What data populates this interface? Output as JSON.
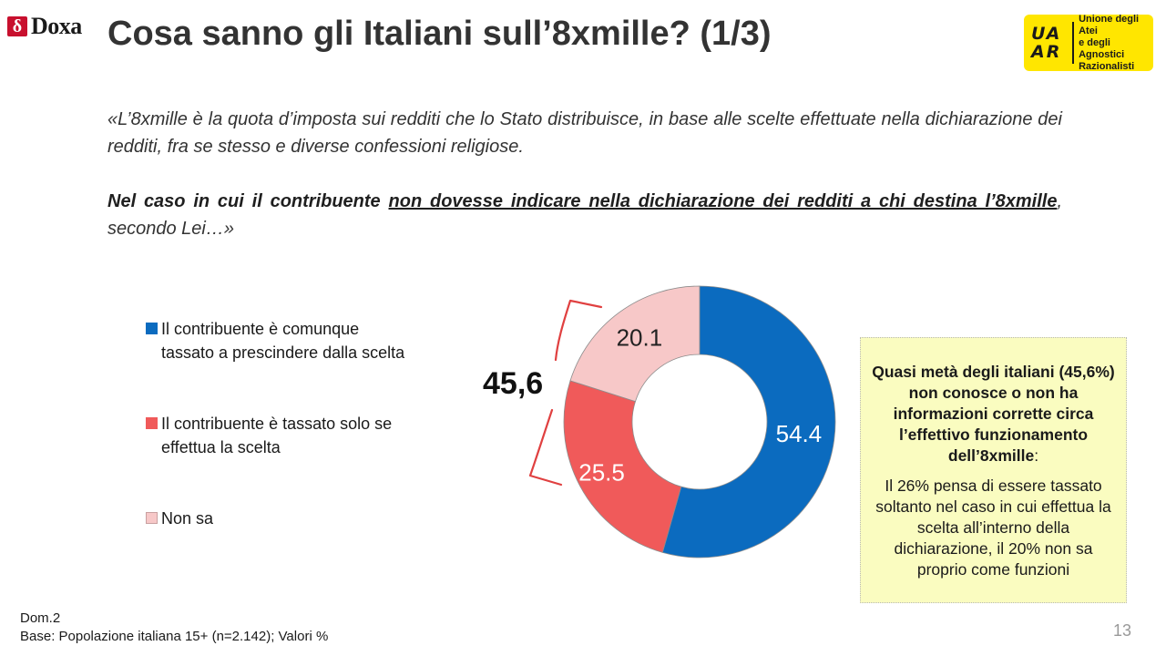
{
  "header": {
    "logo_left": "Doxa",
    "logo_left_mark": "δ",
    "title": "Cosa sanno gli Italiani sull’8xmille? (1/3)",
    "logo_right_mark": "UA AR",
    "logo_right_lines": [
      "Unione degli Atei",
      "e degli Agnostici",
      "Razionalisti"
    ]
  },
  "intro": {
    "definition": "«L’8xmille è la quota d’imposta sui redditi che lo Stato distribuisce, in base alle scelte effettuate nella dichiarazione dei redditi, fra se stesso e diverse confessioni religiose.",
    "question_bold": "Nel caso in cui il contribuente",
    "question_underlined": "non dovesse indicare nella dichiarazione dei redditi a chi destina l’8xmille",
    "question_tail": ", secondo Lei…»"
  },
  "chart_data": {
    "type": "pie",
    "donut": true,
    "categories": [
      "Il contribuente è comunque tassato a prescindere dalla scelta",
      "Il contribuente è tassato solo se effettua la scelta",
      "Non sa"
    ],
    "values": [
      54.4,
      25.5,
      20.1
    ],
    "value_labels": [
      "54.4",
      "25.5",
      "20.1"
    ],
    "colors": [
      "#0b6bbf",
      "#f05a5a",
      "#f7c8c8"
    ],
    "label_colors": [
      "#ffffff",
      "#ffffff",
      "#222222"
    ],
    "legend_lines": [
      [
        "Il contribuente è comunque",
        "tassato a prescindere dalla scelta"
      ],
      [
        "Il contribuente è tassato solo se",
        "effettua la scelta"
      ],
      [
        "Non sa"
      ]
    ],
    "legend_placement": "left",
    "bracket_total": "45,6",
    "bracket_color": "#e04040"
  },
  "infobox": {
    "headline": "Quasi metà degli italiani (45,6%) non conosce o non ha informazioni corrette circa l’effettivo funzionamento dell’8xmille",
    "headline_suffix": ":",
    "body": "Il 26% pensa di essere tassato soltanto nel caso in cui effettua la scelta all’interno della dichiarazione, il 20% non sa proprio come funzioni",
    "background": "#fafcc0"
  },
  "footer": {
    "dom": "Dom.2",
    "base": "Base: Popolazione italiana 15+ (n=2.142); Valori %",
    "page": "13"
  }
}
